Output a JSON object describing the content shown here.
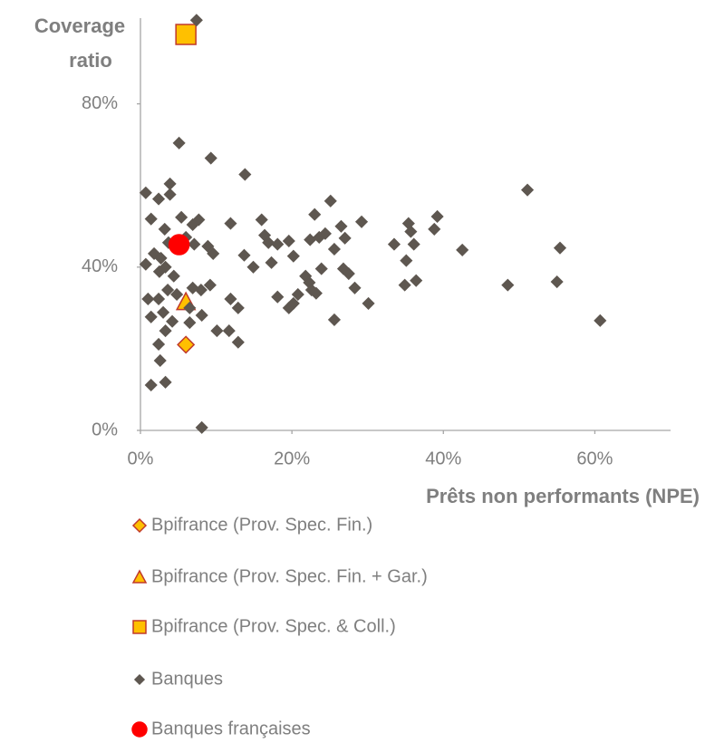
{
  "chart_data": {
    "type": "scatter",
    "y_label": [
      "Coverage",
      "ratio"
    ],
    "x_label": "Prêts non performants (NPE)",
    "xlim": [
      0,
      70
    ],
    "ylim": [
      0,
      101
    ],
    "xticks": [
      {
        "value": 0,
        "label": "0%"
      },
      {
        "value": 20,
        "label": "20%"
      },
      {
        "value": 40,
        "label": "40%"
      },
      {
        "value": 60,
        "label": "60%"
      }
    ],
    "yticks": [
      {
        "value": 0,
        "label": "0%"
      },
      {
        "value": 40,
        "label": "40%"
      },
      {
        "value": 80,
        "label": "80%"
      }
    ],
    "series": [
      {
        "name": "Bpifrance (Prov. Spec. Fin.)",
        "marker": "diamond",
        "color": "#ffc000",
        "edge": "#c0392b",
        "x": [
          6
        ],
        "y": [
          21
        ]
      },
      {
        "name": "Bpifrance (Prov. Spec. Fin. + Gar.)",
        "marker": "triangle",
        "color": "#ffc000",
        "edge": "#c0392b",
        "x": [
          6
        ],
        "y": [
          31.5
        ]
      },
      {
        "name": "Bpifrance (Prov. Spec. & Coll.)",
        "marker": "square",
        "color": "#ffc000",
        "edge": "#c0392b",
        "x": [
          6
        ],
        "y": [
          97
        ]
      },
      {
        "name": "Banques",
        "marker": "diamond",
        "color": "#5e5750",
        "edge": "#5e5750",
        "x": [
          7.4,
          5.1,
          9.3,
          13.8,
          0.7,
          2.4,
          3.9,
          3.9,
          51.1,
          1.4,
          5.4,
          3.2,
          7.7,
          6.9,
          11.9,
          16.0,
          0.7,
          1.8,
          2.7,
          3.7,
          6.0,
          7.1,
          8.9,
          9.6,
          2.5,
          3.3,
          4.4,
          1.0,
          2.4,
          3.6,
          4.8,
          6.9,
          8.0,
          9.2,
          6.5,
          1.4,
          3.0,
          4.2,
          6.5,
          8.1,
          3.3,
          2.4,
          2.6,
          1.4,
          3.3,
          10.1,
          11.7,
          12.9,
          8.1,
          11.9,
          12.9,
          14.9,
          13.7,
          17.3,
          16.4,
          16.9,
          18.1,
          19.6,
          20.2,
          22.4,
          23.6,
          24.4,
          23.0,
          25.1,
          26.5,
          25.6,
          27.0,
          18.1,
          19.6,
          20.2,
          20.8,
          21.8,
          22.3,
          22.6,
          23.2,
          23.9,
          26.8,
          27.5,
          28.3,
          25.6,
          30.1,
          29.2,
          33.5,
          35.4,
          35.7,
          36.1,
          35.1,
          34.9,
          36.4,
          39.2,
          38.8,
          42.5,
          48.5,
          55.0,
          55.4,
          60.7
        ],
        "y": [
          100.5,
          70.4,
          66.7,
          62.7,
          58.2,
          56.7,
          60.4,
          57.8,
          58.9,
          51.8,
          52.2,
          49.3,
          51.6,
          50.4,
          50.7,
          51.6,
          40.7,
          43.3,
          42.2,
          46.0,
          47.3,
          45.6,
          45.1,
          43.3,
          38.9,
          40.0,
          37.8,
          32.2,
          32.2,
          34.4,
          33.3,
          34.9,
          34.4,
          35.6,
          30.0,
          27.8,
          28.9,
          26.7,
          26.4,
          28.2,
          24.4,
          21.1,
          17.1,
          11.1,
          11.8,
          24.4,
          24.4,
          21.6,
          0.7,
          32.2,
          30.0,
          40.0,
          42.9,
          41.1,
          47.8,
          46.0,
          45.6,
          46.4,
          42.7,
          46.7,
          47.3,
          48.2,
          52.9,
          56.2,
          50.0,
          44.4,
          47.1,
          32.7,
          30.0,
          31.1,
          33.3,
          37.8,
          36.2,
          34.4,
          33.6,
          39.6,
          39.6,
          38.4,
          34.9,
          27.1,
          31.1,
          51.1,
          45.6,
          50.7,
          48.7,
          45.6,
          41.6,
          35.6,
          36.7,
          52.4,
          49.3,
          44.2,
          35.6,
          36.4,
          44.7,
          26.9
        ]
      },
      {
        "name": "Banques françaises",
        "marker": "circle",
        "color": "#ff0000",
        "edge": "#ff0000",
        "x": [
          5.1
        ],
        "y": [
          45.5
        ]
      }
    ]
  }
}
